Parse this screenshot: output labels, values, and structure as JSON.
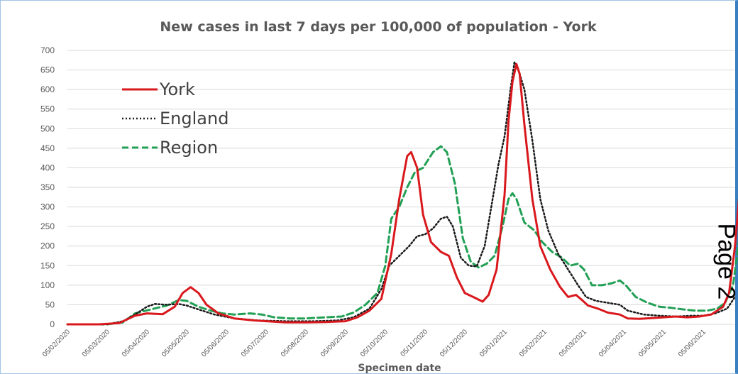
{
  "page_label": "Page 2",
  "colors": {
    "york": "#d9181d",
    "england": "#1a1a1a",
    "region": "#22a055",
    "grid": "#d9d9d9",
    "axis_text": "#595959"
  },
  "chart_data": {
    "type": "line",
    "title": "New cases in last 7 days per 100,000 of population - York",
    "xlabel": "Specimen date",
    "ylabel": "",
    "ylim": [
      0,
      700
    ],
    "yticks": [
      "0",
      "50",
      "100",
      "150",
      "200",
      "250",
      "300",
      "350",
      "400",
      "450",
      "500",
      "550",
      "600",
      "650",
      "700"
    ],
    "xticks": [
      "05/02/2020",
      "05/03/2020",
      "05/04/2020",
      "05/05/2020",
      "05/06/2020",
      "05/07/2020",
      "05/08/2020",
      "05/09/2020",
      "05/10/2020",
      "05/11/2020",
      "05/12/2020",
      "05/01/2021",
      "05/02/2021",
      "05/03/2021",
      "05/04/2021",
      "05/05/2021",
      "05/06/2021"
    ],
    "grid": true,
    "legend": "top-left",
    "series": [
      {
        "name": "York",
        "key": "york",
        "style": "solid",
        "points": [
          [
            0,
            0
          ],
          [
            0.8,
            0
          ],
          [
            1.3,
            3
          ],
          [
            1.7,
            22
          ],
          [
            2.0,
            28
          ],
          [
            2.4,
            26
          ],
          [
            2.7,
            45
          ],
          [
            2.9,
            80
          ],
          [
            3.1,
            95
          ],
          [
            3.3,
            80
          ],
          [
            3.5,
            50
          ],
          [
            3.8,
            28
          ],
          [
            4.2,
            15
          ],
          [
            4.7,
            10
          ],
          [
            5.0,
            8
          ],
          [
            5.5,
            5
          ],
          [
            6.0,
            5
          ],
          [
            6.5,
            6
          ],
          [
            7.0,
            8
          ],
          [
            7.3,
            18
          ],
          [
            7.6,
            35
          ],
          [
            7.9,
            65
          ],
          [
            8.15,
            180
          ],
          [
            8.35,
            320
          ],
          [
            8.55,
            430
          ],
          [
            8.65,
            440
          ],
          [
            8.8,
            400
          ],
          [
            8.95,
            280
          ],
          [
            9.15,
            210
          ],
          [
            9.4,
            185
          ],
          [
            9.6,
            175
          ],
          [
            9.8,
            120
          ],
          [
            10.0,
            80
          ],
          [
            10.25,
            68
          ],
          [
            10.45,
            58
          ],
          [
            10.6,
            75
          ],
          [
            10.8,
            140
          ],
          [
            11.0,
            330
          ],
          [
            11.1,
            520
          ],
          [
            11.2,
            620
          ],
          [
            11.3,
            665
          ],
          [
            11.38,
            640
          ],
          [
            11.5,
            510
          ],
          [
            11.7,
            320
          ],
          [
            11.9,
            200
          ],
          [
            12.15,
            140
          ],
          [
            12.4,
            95
          ],
          [
            12.6,
            70
          ],
          [
            12.8,
            75
          ],
          [
            12.95,
            62
          ],
          [
            13.1,
            48
          ],
          [
            13.35,
            40
          ],
          [
            13.6,
            30
          ],
          [
            13.9,
            25
          ],
          [
            14.1,
            15
          ],
          [
            14.4,
            14
          ],
          [
            14.7,
            16
          ],
          [
            15.0,
            18
          ],
          [
            15.3,
            20
          ],
          [
            15.6,
            18
          ],
          [
            15.9,
            20
          ],
          [
            16.2,
            25
          ],
          [
            16.5,
            45
          ],
          [
            16.65,
            80
          ],
          [
            16.8,
            200
          ],
          [
            16.9,
            320
          ],
          [
            17.0,
            400
          ],
          [
            17.1,
            410
          ],
          [
            17.2,
            405
          ]
        ]
      },
      {
        "name": "England",
        "key": "england",
        "style": "dotted",
        "points": [
          [
            0,
            0
          ],
          [
            1.0,
            0
          ],
          [
            1.4,
            8
          ],
          [
            1.7,
            25
          ],
          [
            2.0,
            45
          ],
          [
            2.2,
            52
          ],
          [
            2.5,
            50
          ],
          [
            2.8,
            52
          ],
          [
            3.0,
            48
          ],
          [
            3.3,
            38
          ],
          [
            3.7,
            25
          ],
          [
            4.2,
            15
          ],
          [
            4.8,
            10
          ],
          [
            5.5,
            8
          ],
          [
            6.2,
            8
          ],
          [
            6.8,
            10
          ],
          [
            7.2,
            18
          ],
          [
            7.6,
            40
          ],
          [
            7.9,
            90
          ],
          [
            8.1,
            150
          ],
          [
            8.3,
            170
          ],
          [
            8.6,
            200
          ],
          [
            8.8,
            225
          ],
          [
            9.0,
            230
          ],
          [
            9.2,
            245
          ],
          [
            9.4,
            270
          ],
          [
            9.55,
            275
          ],
          [
            9.7,
            250
          ],
          [
            9.9,
            170
          ],
          [
            10.1,
            150
          ],
          [
            10.3,
            148
          ],
          [
            10.5,
            200
          ],
          [
            10.7,
            320
          ],
          [
            10.85,
            410
          ],
          [
            11.0,
            480
          ],
          [
            11.15,
            600
          ],
          [
            11.25,
            670
          ],
          [
            11.35,
            650
          ],
          [
            11.5,
            600
          ],
          [
            11.7,
            470
          ],
          [
            11.9,
            320
          ],
          [
            12.1,
            240
          ],
          [
            12.35,
            180
          ],
          [
            12.6,
            140
          ],
          [
            12.85,
            100
          ],
          [
            13.05,
            70
          ],
          [
            13.3,
            60
          ],
          [
            13.6,
            55
          ],
          [
            13.9,
            50
          ],
          [
            14.1,
            35
          ],
          [
            14.5,
            25
          ],
          [
            14.9,
            22
          ],
          [
            15.3,
            20
          ],
          [
            15.7,
            22
          ],
          [
            16.0,
            22
          ],
          [
            16.3,
            28
          ],
          [
            16.6,
            40
          ],
          [
            16.8,
            70
          ]
        ]
      },
      {
        "name": "Region",
        "key": "region",
        "style": "dashed",
        "points": [
          [
            0,
            0
          ],
          [
            1.0,
            0
          ],
          [
            1.4,
            5
          ],
          [
            1.7,
            28
          ],
          [
            2.1,
            38
          ],
          [
            2.5,
            48
          ],
          [
            2.8,
            62
          ],
          [
            3.0,
            60
          ],
          [
            3.3,
            45
          ],
          [
            3.6,
            35
          ],
          [
            3.9,
            28
          ],
          [
            4.2,
            25
          ],
          [
            4.6,
            28
          ],
          [
            4.9,
            25
          ],
          [
            5.2,
            18
          ],
          [
            5.6,
            15
          ],
          [
            6.0,
            15
          ],
          [
            6.5,
            18
          ],
          [
            6.9,
            20
          ],
          [
            7.2,
            30
          ],
          [
            7.5,
            50
          ],
          [
            7.8,
            80
          ],
          [
            8.0,
            150
          ],
          [
            8.15,
            270
          ],
          [
            8.35,
            300
          ],
          [
            8.55,
            350
          ],
          [
            8.75,
            390
          ],
          [
            8.95,
            400
          ],
          [
            9.2,
            440
          ],
          [
            9.4,
            455
          ],
          [
            9.55,
            440
          ],
          [
            9.75,
            360
          ],
          [
            9.95,
            220
          ],
          [
            10.15,
            160
          ],
          [
            10.35,
            145
          ],
          [
            10.55,
            155
          ],
          [
            10.75,
            175
          ],
          [
            10.95,
            250
          ],
          [
            11.1,
            320
          ],
          [
            11.2,
            335
          ],
          [
            11.3,
            320
          ],
          [
            11.5,
            260
          ],
          [
            11.75,
            240
          ],
          [
            11.95,
            210
          ],
          [
            12.2,
            185
          ],
          [
            12.45,
            170
          ],
          [
            12.65,
            150
          ],
          [
            12.85,
            155
          ],
          [
            13.0,
            140
          ],
          [
            13.2,
            100
          ],
          [
            13.45,
            100
          ],
          [
            13.7,
            105
          ],
          [
            13.9,
            112
          ],
          [
            14.05,
            100
          ],
          [
            14.3,
            70
          ],
          [
            14.6,
            55
          ],
          [
            14.9,
            45
          ],
          [
            15.2,
            42
          ],
          [
            15.5,
            38
          ],
          [
            15.8,
            35
          ],
          [
            16.1,
            35
          ],
          [
            16.35,
            40
          ],
          [
            16.55,
            55
          ],
          [
            16.75,
            100
          ],
          [
            16.95,
            250
          ],
          [
            17.1,
            310
          ],
          [
            17.2,
            345
          ]
        ]
      }
    ]
  }
}
